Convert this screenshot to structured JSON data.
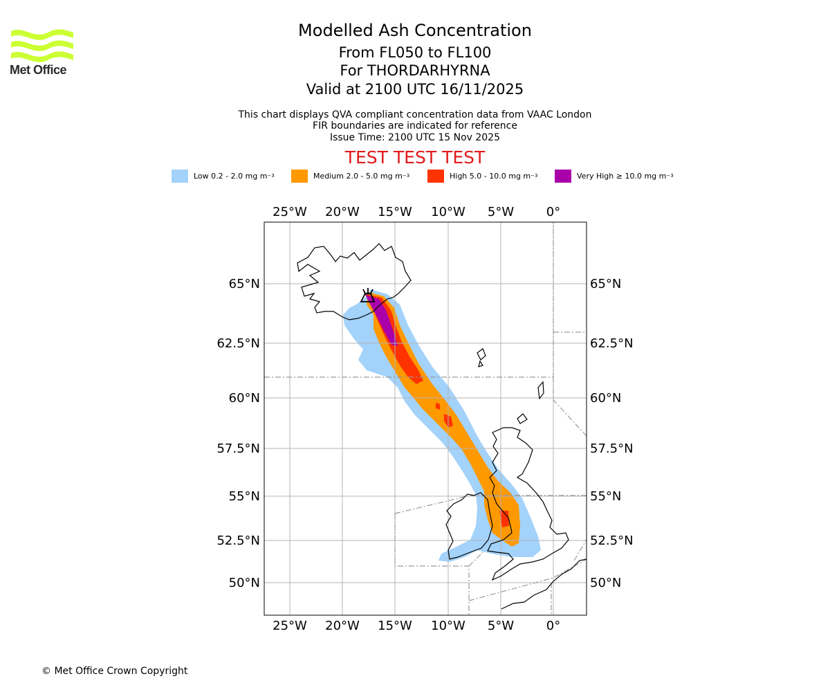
{
  "logo": {
    "text": "Met Office",
    "icon": "met-office-wave-logo-icon",
    "color": "#ccff33"
  },
  "header": {
    "title": "Modelled Ash Concentration",
    "levels": "From FL050 to FL100",
    "volcano": "For THORDARHYRNA",
    "valid": "Valid at 2100 UTC 16/11/2025",
    "info1": "This chart displays QVA compliant concentration data from VAAC London",
    "info2": "FIR boundaries are indicated for reference",
    "issue": "Issue Time: 2100 UTC 15 Nov 2025",
    "test": "TEST TEST TEST"
  },
  "legend": [
    {
      "label": "Low 0.2 - 2.0 mg m",
      "unit_sup": "−3",
      "color": "#a3d2fa"
    },
    {
      "label": "Medium 2.0 - 5.0 mg m",
      "unit_sup": "−3",
      "color": "#ff9900"
    },
    {
      "label": "High 5.0 - 10.0 mg m",
      "unit_sup": "−3",
      "color": "#ff3300"
    },
    {
      "label": "Very High  ≥  10.0 mg m",
      "unit_sup": "−3",
      "color": "#aa00aa"
    }
  ],
  "map": {
    "lon_labels": [
      "25°W",
      "20°W",
      "15°W",
      "10°W",
      "5°W",
      "0°"
    ],
    "lat_labels": [
      "65°N",
      "62.5°N",
      "60°N",
      "57.5°N",
      "55°N",
      "52.5°N",
      "50°N"
    ],
    "volcano_marker": "volcano-icon"
  },
  "footer": {
    "copyright": "© Met Office Crown Copyright"
  }
}
